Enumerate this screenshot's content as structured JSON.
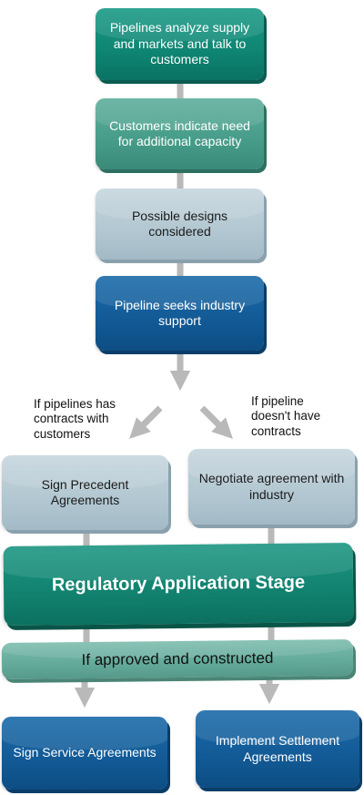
{
  "steps": {
    "analyze": "Pipelines analyze supply and markets and talk to customers",
    "customers": "Customers indicate need for additional capacity",
    "designs": "Possible designs considered",
    "seeks_support": "Pipeline seeks industry support",
    "sign_precedent": "Sign Precedent Agreements",
    "negotiate": "Negotiate agreement with industry",
    "regulatory": "Regulatory Application Stage",
    "approved": "If approved and constructed",
    "sign_service": "Sign Service Agreements",
    "implement": "Implement Settlement Agreements"
  },
  "branches": {
    "has_contracts": "If pipelines has contracts with customers",
    "no_contracts": "If pipeline doesn't have contracts"
  },
  "colors": {
    "connector": "#b9b9b9",
    "dark_teal": "#0f8573",
    "mid_teal": "#469c89",
    "grey_blue": "#b2c7d1",
    "blue": "#125a96",
    "light_teal": "#63aa9a"
  }
}
